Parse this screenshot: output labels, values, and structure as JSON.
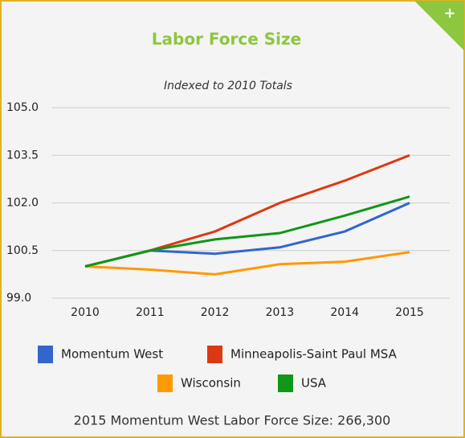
{
  "chart_data": {
    "type": "line",
    "title": "Labor Force Size",
    "subtitle": "Indexed to 2010 Totals",
    "categories": [
      "2010",
      "2011",
      "2012",
      "2013",
      "2014",
      "2015"
    ],
    "series": [
      {
        "name": "Momentum West",
        "color": "#3366cc",
        "values": [
          100.0,
          100.5,
          100.4,
          100.6,
          101.1,
          102.0
        ]
      },
      {
        "name": "Minneapolis-Saint Paul MSA",
        "color": "#dc3912",
        "values": [
          100.0,
          100.5,
          101.1,
          102.0,
          102.7,
          103.5
        ]
      },
      {
        "name": "Wisconsin",
        "color": "#ff9900",
        "values": [
          100.0,
          99.9,
          99.75,
          100.07,
          100.15,
          100.45
        ]
      },
      {
        "name": "USA",
        "color": "#109618",
        "values": [
          100.0,
          100.5,
          100.85,
          101.05,
          101.6,
          102.2
        ]
      }
    ],
    "ylim": [
      99,
      105
    ],
    "yticks": [
      {
        "value": 99,
        "label": "99.0"
      },
      {
        "value": 100.5,
        "label": "100.5"
      },
      {
        "value": 102,
        "label": "102.0"
      },
      {
        "value": 103.5,
        "label": "103.5"
      },
      {
        "value": 105,
        "label": "105.0"
      }
    ],
    "grid": true
  },
  "footer": "2015 Momentum West Labor Force Size: 266,300",
  "expand_icon": "+"
}
